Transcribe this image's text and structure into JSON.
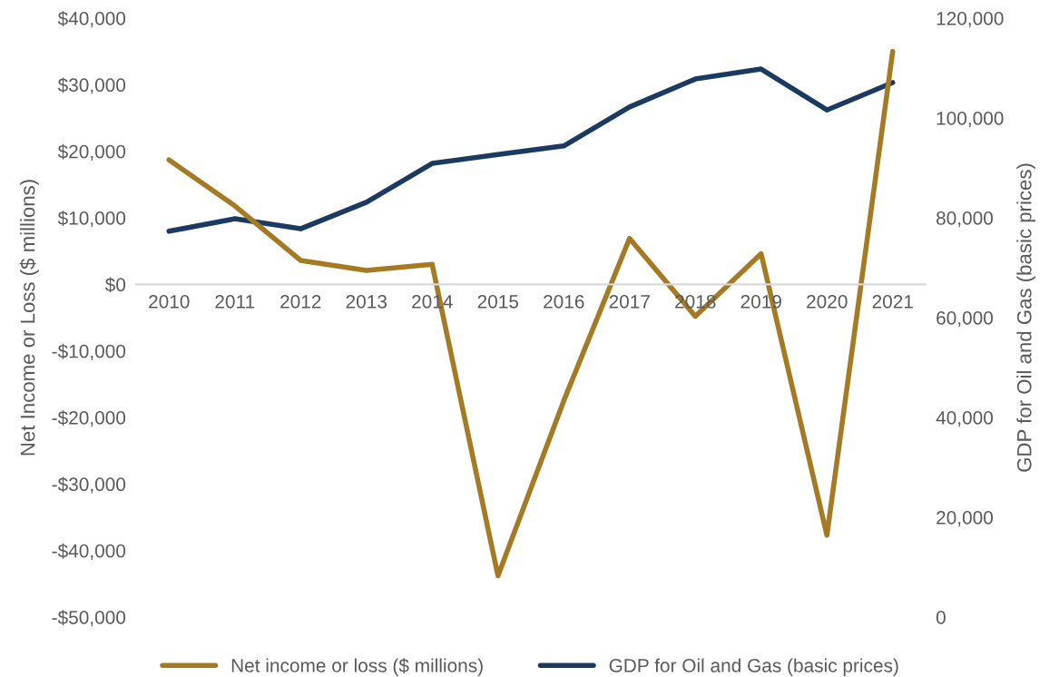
{
  "chart_data": {
    "type": "line",
    "categories": [
      "2010",
      "2011",
      "2012",
      "2013",
      "2014",
      "2015",
      "2016",
      "2017",
      "2018",
      "2019",
      "2020",
      "2021"
    ],
    "series": [
      {
        "name": "Net income or loss ($ millions)",
        "color": "#a57a22",
        "values": [
          18700,
          11800,
          3600,
          2100,
          3000,
          -43800,
          -17500,
          6900,
          -4800,
          4600,
          -37700,
          35000
        ]
      },
      {
        "name": "GDP for Oil and Gas (basic prices)",
        "color": "#1b3a61",
        "axis": "y2",
        "values": [
          77300,
          79800,
          77800,
          83100,
          90900,
          92700,
          94400,
          102200,
          107800,
          109800,
          101600,
          107100
        ]
      }
    ],
    "ylabel": "Net Income or Loss ($ millions)",
    "y2label": "GDP for Oil and Gas (basic prices)",
    "ylim": [
      -50000,
      40000
    ],
    "yticks": [
      {
        "value": -50000,
        "label": "-$50,000"
      },
      {
        "value": -40000,
        "label": "-$40,000"
      },
      {
        "value": -30000,
        "label": "-$30,000"
      },
      {
        "value": -20000,
        "label": "-$20,000"
      },
      {
        "value": -10000,
        "label": "-$10,000"
      },
      {
        "value": 0,
        "label": "$0"
      },
      {
        "value": 10000,
        "label": "$10,000"
      },
      {
        "value": 20000,
        "label": "$20,000"
      },
      {
        "value": 30000,
        "label": "$30,000"
      },
      {
        "value": 40000,
        "label": "$40,000"
      }
    ],
    "y2lim": [
      0,
      120000
    ],
    "y2ticks": [
      {
        "value": 0,
        "label": "0"
      },
      {
        "value": 20000,
        "label": "20,000"
      },
      {
        "value": 40000,
        "label": "40,000"
      },
      {
        "value": 60000,
        "label": "60,000"
      },
      {
        "value": 80000,
        "label": "80,000"
      },
      {
        "value": 100000,
        "label": "100,000"
      },
      {
        "value": 120000,
        "label": "120,000"
      }
    ],
    "legend": "bottom",
    "grid": false,
    "marker": "none",
    "line_style": "solid"
  }
}
